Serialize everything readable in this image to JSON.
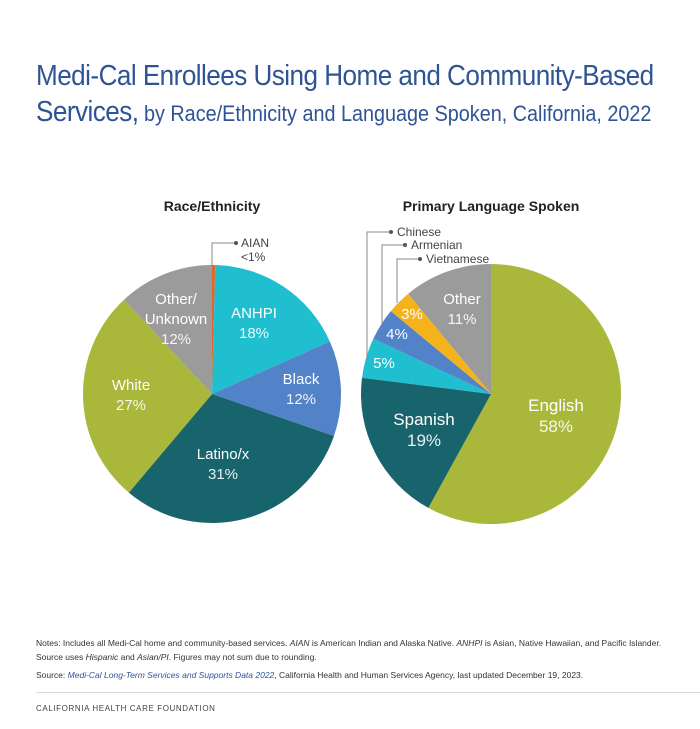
{
  "title": {
    "line1": "Medi-Cal Enrollees Using Home and Community-Based",
    "line2_bold": "Services,",
    "line2_rest": " by Race/Ethnicity and Language Spoken, California, 2022"
  },
  "chart_data": [
    {
      "type": "pie",
      "title": "Race/Ethnicity",
      "start": "12 o'clock, clockwise",
      "slices": [
        {
          "label": "AIAN",
          "value_label": "<1%",
          "value": 0.4,
          "color": "#e0662a"
        },
        {
          "label": "ANHPI",
          "value_label": "18%",
          "value": 18,
          "color": "#1fbfcf"
        },
        {
          "label": "Black",
          "value_label": "12%",
          "value": 12,
          "color": "#5282c8"
        },
        {
          "label": "Latino/x",
          "value_label": "31%",
          "value": 31,
          "color": "#17646c"
        },
        {
          "label": "White",
          "value_label": "27%",
          "value": 27,
          "color": "#a9b83a"
        },
        {
          "label": "Other/ Unknown",
          "value_label": "12%",
          "value": 12,
          "color": "#9b9b9b"
        }
      ]
    },
    {
      "type": "pie",
      "title": "Primary Language Spoken",
      "start": "12 o'clock, clockwise",
      "slices": [
        {
          "label": "English",
          "value_label": "58%",
          "value": 58,
          "color": "#a9b83a"
        },
        {
          "label": "Spanish",
          "value_label": "19%",
          "value": 19,
          "color": "#17646c"
        },
        {
          "label": "Chinese",
          "value_label": "5%",
          "value": 5,
          "color": "#1fbfcf"
        },
        {
          "label": "Armenian",
          "value_label": "4%",
          "value": 4,
          "color": "#5282c8"
        },
        {
          "label": "Vietnamese",
          "value_label": "3%",
          "value": 3,
          "color": "#f5b31b"
        },
        {
          "label": "Other",
          "value_label": "11%",
          "value": 11,
          "color": "#9b9b9b"
        }
      ]
    }
  ],
  "notes": {
    "n1": "Notes: Includes all Medi-Cal home and community-based services. ",
    "n2": "AIAN",
    "n3": " is American Indian and Alaska Native. ",
    "n4": "ANHPI",
    "n5": " is Asian, Native Hawaiian, and Pacific Islander. Source uses ",
    "n6": "Hispanic",
    "n7": " and ",
    "n8": "Asian/PI",
    "n9": ". Figures may not sum due to rounding.",
    "source_prefix": "Source: ",
    "source_link": "Medi-Cal Long-Term Services and Supports Data 2022",
    "source_rest": ", California Health and Human Services Agency, last updated December 19, 2023."
  },
  "footer": "CALIFORNIA HEALTH CARE FOUNDATION"
}
